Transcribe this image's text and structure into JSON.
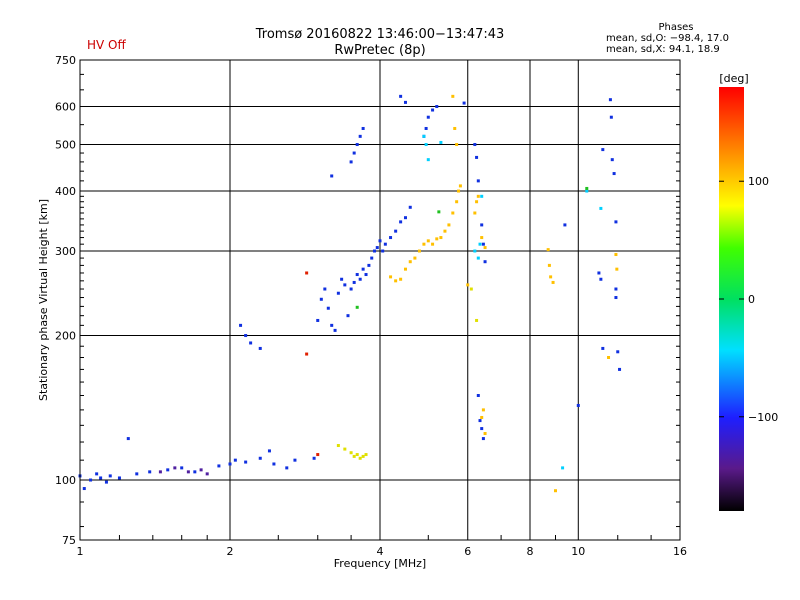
{
  "status": {
    "hv": "HV Off"
  },
  "header": {
    "title_line1": "Tromsø 20160822 13:46:00−13:47:43",
    "title_line2": "RwPretec (8p)"
  },
  "phase_info": {
    "title": "Phases",
    "o_line": "mean, sd,O: −98.4, 17.0",
    "x_line": "mean, sd,X:  94.1, 18.9"
  },
  "colorbar": {
    "unit": "[deg]",
    "ticks": [
      {
        "label": "100",
        "value": 100
      },
      {
        "label": "0",
        "value": 0
      },
      {
        "label": "−100",
        "value": -100
      }
    ],
    "range": [
      -180,
      180
    ]
  },
  "chart_data": {
    "type": "scatter",
    "xlabel": "Frequency [MHz]",
    "ylabel": "Stationary phase Virtual Height [km]",
    "x_scale": "log",
    "y_scale": "log",
    "xlim": [
      1,
      16
    ],
    "ylim": [
      75,
      750
    ],
    "x_ticks": [
      {
        "label": "1",
        "value": 1
      },
      {
        "label": "2",
        "value": 2
      },
      {
        "label": "4",
        "value": 4
      },
      {
        "label": "6",
        "value": 6
      },
      {
        "label": "8",
        "value": 8
      },
      {
        "label": "10",
        "value": 10
      },
      {
        "label": "16",
        "value": 16
      }
    ],
    "y_ticks": [
      {
        "label": "75",
        "value": 75
      },
      {
        "label": "100",
        "value": 100
      },
      {
        "label": "200",
        "value": 200
      },
      {
        "label": "300",
        "value": 300
      },
      {
        "label": "400",
        "value": 400
      },
      {
        "label": "500",
        "value": 500
      },
      {
        "label": "600",
        "value": 600
      },
      {
        "label": "750",
        "value": 750
      }
    ],
    "grid": true,
    "series": [
      {
        "color": "#1030e0",
        "points": [
          [
            1.0,
            102
          ],
          [
            1.02,
            96
          ],
          [
            1.05,
            100
          ],
          [
            1.08,
            103
          ],
          [
            1.1,
            101
          ],
          [
            1.13,
            99
          ],
          [
            1.15,
            102
          ],
          [
            1.2,
            101
          ],
          [
            1.25,
            122
          ],
          [
            1.3,
            103
          ],
          [
            1.38,
            104
          ],
          [
            1.5,
            105
          ],
          [
            1.6,
            106
          ],
          [
            1.7,
            104
          ],
          [
            1.9,
            107
          ],
          [
            2.0,
            108
          ],
          [
            2.05,
            110
          ],
          [
            2.15,
            109
          ],
          [
            2.3,
            111
          ],
          [
            2.4,
            115
          ],
          [
            2.45,
            108
          ],
          [
            2.6,
            106
          ],
          [
            2.7,
            110
          ],
          [
            2.95,
            111
          ],
          [
            2.1,
            210
          ],
          [
            2.15,
            200
          ],
          [
            2.2,
            193
          ],
          [
            2.3,
            188
          ],
          [
            3.0,
            215
          ],
          [
            3.05,
            238
          ],
          [
            3.1,
            250
          ],
          [
            3.15,
            228
          ],
          [
            3.2,
            210
          ],
          [
            3.25,
            205
          ],
          [
            3.3,
            245
          ],
          [
            3.35,
            262
          ],
          [
            3.4,
            255
          ],
          [
            3.45,
            220
          ],
          [
            3.5,
            250
          ],
          [
            3.55,
            258
          ],
          [
            3.6,
            268
          ],
          [
            3.65,
            262
          ],
          [
            3.7,
            275
          ],
          [
            3.75,
            268
          ],
          [
            3.8,
            280
          ],
          [
            3.85,
            290
          ],
          [
            3.9,
            300
          ],
          [
            3.95,
            305
          ],
          [
            4.0,
            315
          ],
          [
            4.05,
            300
          ],
          [
            4.1,
            310
          ],
          [
            4.2,
            320
          ],
          [
            4.3,
            330
          ],
          [
            4.4,
            345
          ],
          [
            4.5,
            352
          ],
          [
            4.6,
            370
          ],
          [
            3.2,
            430
          ],
          [
            3.5,
            460
          ],
          [
            3.55,
            480
          ],
          [
            3.6,
            500
          ],
          [
            3.65,
            520
          ],
          [
            3.7,
            540
          ],
          [
            4.4,
            630
          ],
          [
            4.5,
            612
          ],
          [
            4.9,
            520
          ],
          [
            4.95,
            540
          ],
          [
            5.0,
            570
          ],
          [
            5.1,
            590
          ],
          [
            5.2,
            600
          ],
          [
            5.9,
            610
          ],
          [
            6.2,
            500
          ],
          [
            6.25,
            470
          ],
          [
            6.3,
            420
          ],
          [
            6.4,
            340
          ],
          [
            6.45,
            310
          ],
          [
            6.5,
            285
          ],
          [
            6.3,
            150
          ],
          [
            6.35,
            133
          ],
          [
            6.4,
            128
          ],
          [
            6.45,
            122
          ],
          [
            9.4,
            340
          ],
          [
            11.0,
            270
          ],
          [
            11.1,
            262
          ],
          [
            11.2,
            488
          ],
          [
            11.6,
            620
          ],
          [
            11.65,
            570
          ],
          [
            11.7,
            465
          ],
          [
            11.8,
            435
          ],
          [
            11.9,
            345
          ],
          [
            11.9,
            250
          ],
          [
            11.9,
            240
          ],
          [
            12.0,
            185
          ],
          [
            12.1,
            170
          ],
          [
            11.2,
            188
          ],
          [
            10.0,
            143
          ]
        ]
      },
      {
        "color": "#ffc000",
        "points": [
          [
            4.2,
            265
          ],
          [
            4.3,
            260
          ],
          [
            4.4,
            262
          ],
          [
            4.5,
            275
          ],
          [
            4.6,
            285
          ],
          [
            4.7,
            290
          ],
          [
            4.8,
            300
          ],
          [
            4.9,
            310
          ],
          [
            5.0,
            315
          ],
          [
            5.1,
            310
          ],
          [
            5.2,
            318
          ],
          [
            5.3,
            320
          ],
          [
            5.4,
            330
          ],
          [
            5.5,
            340
          ],
          [
            5.6,
            360
          ],
          [
            5.7,
            380
          ],
          [
            5.75,
            400
          ],
          [
            5.8,
            410
          ],
          [
            5.6,
            630
          ],
          [
            5.65,
            540
          ],
          [
            5.7,
            500
          ],
          [
            6.0,
            255
          ],
          [
            6.2,
            360
          ],
          [
            6.25,
            380
          ],
          [
            6.3,
            390
          ],
          [
            6.4,
            320
          ],
          [
            6.5,
            305
          ],
          [
            8.7,
            302
          ],
          [
            8.75,
            280
          ],
          [
            8.8,
            265
          ],
          [
            8.9,
            258
          ],
          [
            9.0,
            95
          ],
          [
            6.4,
            135
          ],
          [
            6.45,
            140
          ],
          [
            6.5,
            125
          ],
          [
            11.9,
            295
          ],
          [
            11.95,
            275
          ],
          [
            11.5,
            180
          ]
        ]
      },
      {
        "color": "#e0e000",
        "points": [
          [
            3.3,
            118
          ],
          [
            3.4,
            116
          ],
          [
            3.5,
            114
          ],
          [
            3.55,
            112
          ],
          [
            3.6,
            113
          ],
          [
            3.65,
            111
          ],
          [
            3.7,
            112
          ],
          [
            3.75,
            113
          ],
          [
            6.1,
            250
          ],
          [
            6.25,
            215
          ]
        ]
      },
      {
        "color": "#5020a0",
        "points": [
          [
            1.45,
            104
          ],
          [
            1.55,
            106
          ],
          [
            1.65,
            104
          ],
          [
            1.75,
            105
          ],
          [
            1.8,
            103
          ]
        ]
      },
      {
        "color": "#00d0ff",
        "points": [
          [
            4.9,
            520
          ],
          [
            4.95,
            500
          ],
          [
            5.0,
            465
          ],
          [
            5.3,
            505
          ],
          [
            6.2,
            300
          ],
          [
            6.3,
            290
          ],
          [
            6.35,
            310
          ],
          [
            6.4,
            390
          ],
          [
            9.3,
            106
          ],
          [
            10.4,
            400
          ],
          [
            11.1,
            368
          ]
        ]
      },
      {
        "color": "#20c020",
        "points": [
          [
            3.6,
            229
          ],
          [
            5.25,
            362
          ],
          [
            10.4,
            405
          ]
        ]
      },
      {
        "color": "#e02000",
        "points": [
          [
            2.85,
            183
          ],
          [
            2.85,
            270
          ],
          [
            3.0,
            113
          ]
        ]
      }
    ]
  }
}
